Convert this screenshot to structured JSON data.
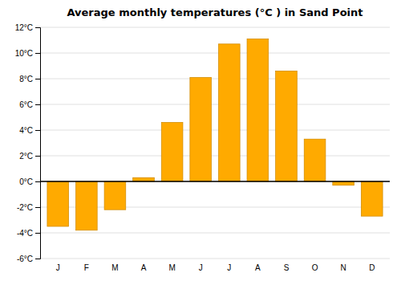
{
  "chart_data": {
    "type": "bar",
    "title": "Average monthly temperatures (°C ) in Sand Point",
    "categories": [
      "J",
      "F",
      "M",
      "A",
      "M",
      "J",
      "J",
      "A",
      "S",
      "O",
      "N",
      "D"
    ],
    "values": [
      -3.5,
      -3.8,
      -2.2,
      0.3,
      4.6,
      8.1,
      10.7,
      11.1,
      8.6,
      3.3,
      -0.3,
      -2.7
    ],
    "color": "#FFAA00",
    "ylim": [
      -6,
      12
    ],
    "yticks": [
      {
        "value": -6,
        "label": "-6°C"
      },
      {
        "value": -4,
        "label": "-4°C"
      },
      {
        "value": -2,
        "label": "-2°C"
      },
      {
        "value": 0,
        "label": "0°C"
      },
      {
        "value": 2,
        "label": "2°C"
      },
      {
        "value": 4,
        "label": "4°C"
      },
      {
        "value": 6,
        "label": "6°C"
      },
      {
        "value": 8,
        "label": "8°C"
      },
      {
        "value": 10,
        "label": "10°C"
      },
      {
        "value": 12,
        "label": "12°C"
      }
    ],
    "grid": true
  }
}
